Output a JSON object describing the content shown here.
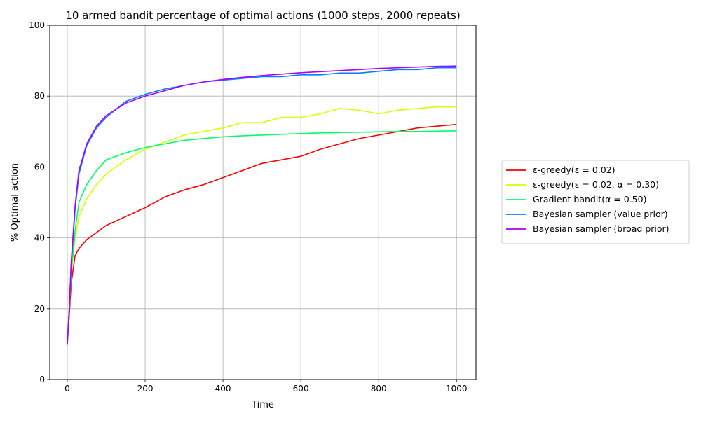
{
  "chart_data": {
    "type": "line",
    "title": "10 armed bandit percentage of optimal actions (1000 steps, 2000 repeats)",
    "xlabel": "Time",
    "ylabel": "% Optimal action",
    "xlim": [
      -45,
      1050
    ],
    "ylim": [
      0,
      100
    ],
    "xticks": [
      0,
      200,
      400,
      600,
      800,
      1000
    ],
    "yticks": [
      0,
      20,
      40,
      60,
      80,
      100
    ],
    "grid": true,
    "legend_position": "right, outside plot",
    "series": [
      {
        "name": "ε-greedy(ε = 0.02)",
        "color": "#ff0000",
        "x": [
          0,
          5,
          10,
          20,
          30,
          50,
          75,
          100,
          150,
          200,
          250,
          300,
          350,
          400,
          450,
          500,
          550,
          600,
          650,
          700,
          750,
          800,
          850,
          900,
          950,
          1000
        ],
        "y": [
          10,
          18,
          27,
          35,
          37,
          39.5,
          41.5,
          43.5,
          46,
          48.5,
          51.5,
          53.5,
          55,
          57,
          59,
          61,
          62,
          63,
          65,
          66.5,
          68,
          69,
          70,
          71,
          71.5,
          72
        ]
      },
      {
        "name": "ε-greedy(ε = 0.02, α = 0.30)",
        "color": "#d4ff00",
        "x": [
          0,
          5,
          10,
          20,
          30,
          50,
          75,
          100,
          150,
          200,
          250,
          300,
          350,
          400,
          450,
          500,
          550,
          600,
          650,
          700,
          750,
          800,
          850,
          900,
          950,
          1000
        ],
        "y": [
          10,
          20,
          30,
          40,
          46,
          51,
          55,
          58,
          62,
          65,
          67,
          69,
          70,
          71,
          72.5,
          72.5,
          74,
          74,
          75,
          76.5,
          76,
          75,
          76,
          76.5,
          77,
          77
        ]
      },
      {
        "name": "Gradient bandit(α = 0.50)",
        "color": "#00ff66",
        "x": [
          0,
          5,
          10,
          20,
          30,
          50,
          75,
          100,
          150,
          200,
          250,
          300,
          350,
          400,
          450,
          500,
          550,
          600,
          650,
          700,
          750,
          800,
          850,
          900,
          950,
          1000
        ],
        "y": [
          10,
          20,
          30,
          42,
          50,
          55,
          59,
          62,
          64,
          65.5,
          66.5,
          67.5,
          68,
          68.5,
          68.8,
          69,
          69.2,
          69.4,
          69.6,
          69.7,
          69.8,
          69.9,
          70,
          70,
          70.1,
          70.2
        ]
      },
      {
        "name": "Bayesian sampler (value prior)",
        "color": "#0080ff",
        "x": [
          0,
          5,
          10,
          20,
          30,
          50,
          75,
          100,
          150,
          200,
          250,
          300,
          350,
          400,
          450,
          500,
          550,
          600,
          650,
          700,
          750,
          800,
          850,
          900,
          950,
          1000
        ],
        "y": [
          10,
          20,
          32,
          48,
          58,
          66,
          71,
          74,
          78.5,
          80.5,
          82,
          83,
          84,
          84.5,
          85,
          85.5,
          85.5,
          86,
          86,
          86.5,
          86.5,
          87,
          87.5,
          87.5,
          88,
          88
        ]
      },
      {
        "name": "Bayesian sampler (broad prior)",
        "color": "#aa00ff",
        "x": [
          0,
          5,
          10,
          20,
          30,
          50,
          75,
          100,
          150,
          200,
          250,
          300,
          350,
          400,
          450,
          500,
          550,
          600,
          650,
          700,
          750,
          800,
          850,
          900,
          950,
          1000
        ],
        "y": [
          10,
          20,
          33,
          49,
          59,
          66.5,
          71.5,
          74.5,
          78,
          80,
          81.5,
          83,
          84,
          84.7,
          85.3,
          85.8,
          86.2,
          86.6,
          86.9,
          87.2,
          87.5,
          87.8,
          88,
          88.2,
          88.4,
          88.5
        ]
      }
    ]
  }
}
